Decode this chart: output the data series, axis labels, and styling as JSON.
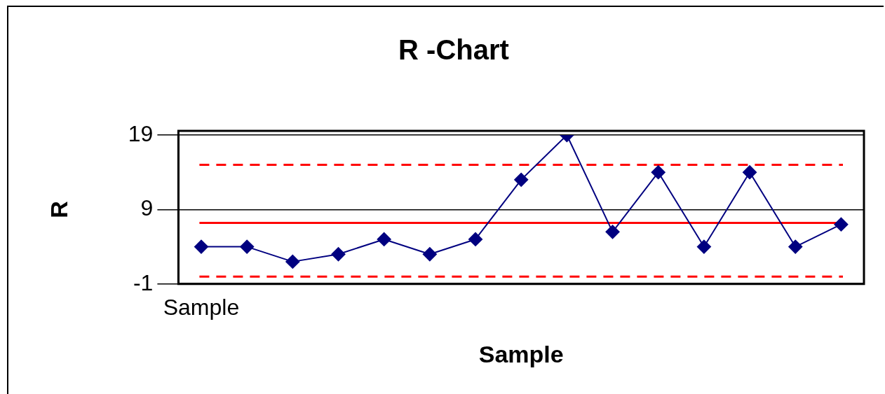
{
  "chart_data": {
    "type": "line",
    "title": "R -Chart",
    "xlabel": "Sample",
    "ylabel": "R",
    "categories": [
      "Sample",
      null,
      null,
      null,
      null,
      null,
      null,
      null,
      null,
      null,
      null,
      null,
      null,
      null,
      null
    ],
    "series": [
      {
        "color": "#000080",
        "values": [
          4,
          4,
          2,
          3,
          5,
          3,
          5,
          13,
          19,
          6,
          14,
          4,
          14,
          4,
          7
        ]
      }
    ],
    "ylim": [
      -1,
      19
    ],
    "yticks": [
      -1,
      9,
      19
    ],
    "grid": "y",
    "marker": "diamond",
    "legend": false,
    "ref_lines": [
      {
        "axis": "y",
        "value": 15,
        "color": "#ff0000",
        "line_style": "dashed"
      },
      {
        "axis": "y",
        "value": 7.2,
        "color": "#ff0000",
        "line_style": "solid"
      },
      {
        "axis": "y",
        "value": 0,
        "color": "#ff0000",
        "line_style": "dashed"
      }
    ]
  }
}
